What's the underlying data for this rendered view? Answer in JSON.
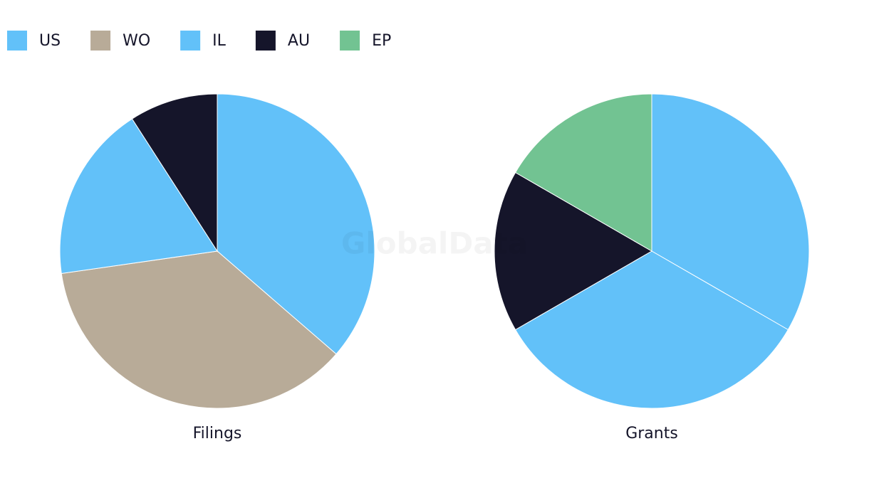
{
  "legend": [
    {
      "name": "US",
      "color": "#62c1f9"
    },
    {
      "name": "WO",
      "color": "#b8ab98"
    },
    {
      "name": "IL",
      "color": "#62c1f9"
    },
    {
      "name": "AU",
      "color": "#15152a"
    },
    {
      "name": "EP",
      "color": "#72c392"
    }
  ],
  "watermark": "GlobalData",
  "chart_data": [
    {
      "type": "pie",
      "title": "Filings",
      "categories": [
        "US",
        "WO",
        "IL",
        "AU"
      ],
      "values": [
        4,
        4,
        2,
        1
      ]
    },
    {
      "type": "pie",
      "title": "Grants",
      "categories": [
        "US",
        "IL",
        "AU",
        "EP"
      ],
      "values": [
        2,
        2,
        1,
        1
      ]
    }
  ]
}
